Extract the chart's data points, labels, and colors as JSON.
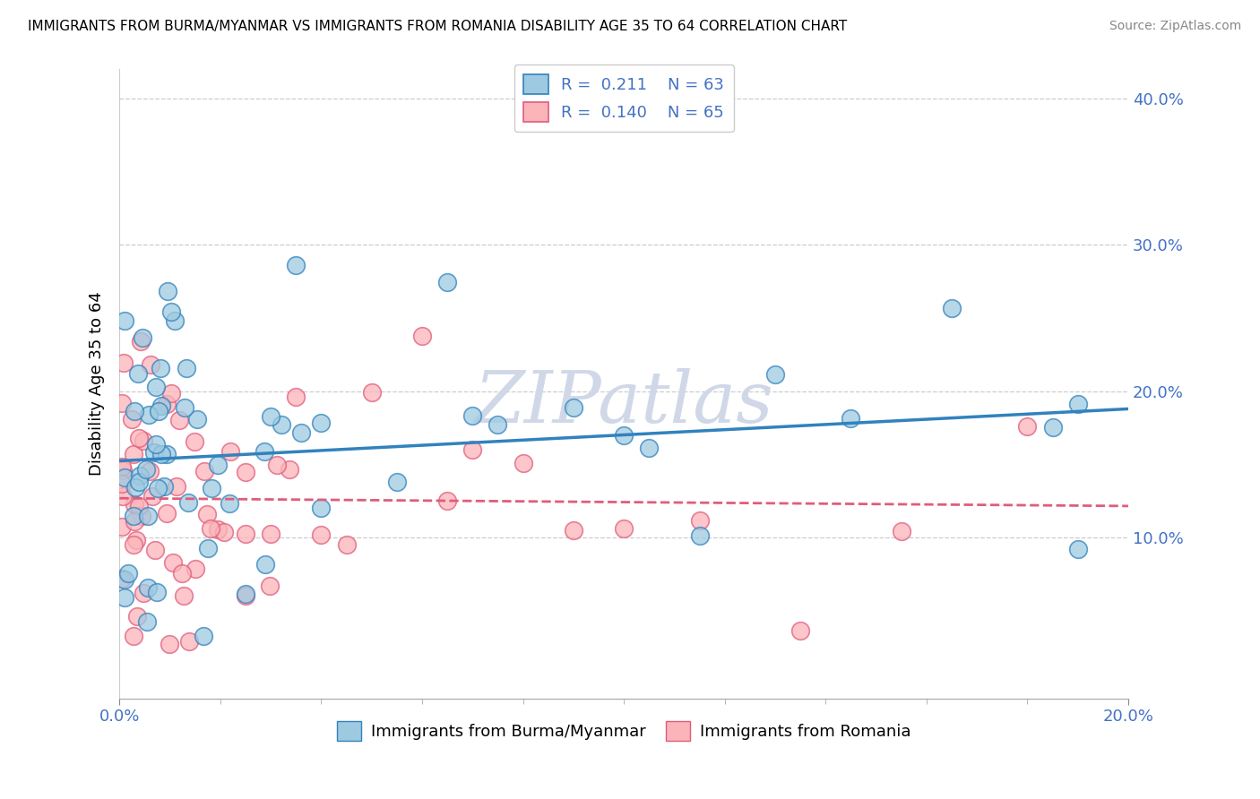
{
  "title": "IMMIGRANTS FROM BURMA/MYANMAR VS IMMIGRANTS FROM ROMANIA DISABILITY AGE 35 TO 64 CORRELATION CHART",
  "source": "Source: ZipAtlas.com",
  "ylabel": "Disability Age 35 to 64",
  "xlim": [
    0.0,
    0.2
  ],
  "ylim": [
    -0.01,
    0.42
  ],
  "ytick_vals": [
    0.0,
    0.1,
    0.2,
    0.3,
    0.4
  ],
  "ytick_labels": [
    "",
    "10.0%",
    "20.0%",
    "30.0%",
    "40.0%"
  ],
  "xtick_vals": [
    0.0,
    0.2
  ],
  "xtick_labels": [
    "0.0%",
    "20.0%"
  ],
  "legend_burma_R": 0.211,
  "legend_burma_N": 63,
  "legend_romania_R": 0.14,
  "legend_romania_N": 65,
  "burma_color": "#9ecae1",
  "romania_color": "#fbb4b9",
  "burma_edge": "#3182bd",
  "romania_edge": "#e05c7a",
  "burma_line_color": "#3182bd",
  "romania_line_color": "#e05c7a",
  "watermark_color": "#d0d8e8",
  "watermark_text": "ZIPatlas",
  "grid_color": "#cccccc",
  "title_fontsize": 11,
  "source_fontsize": 10,
  "tick_fontsize": 13,
  "ylabel_fontsize": 13
}
